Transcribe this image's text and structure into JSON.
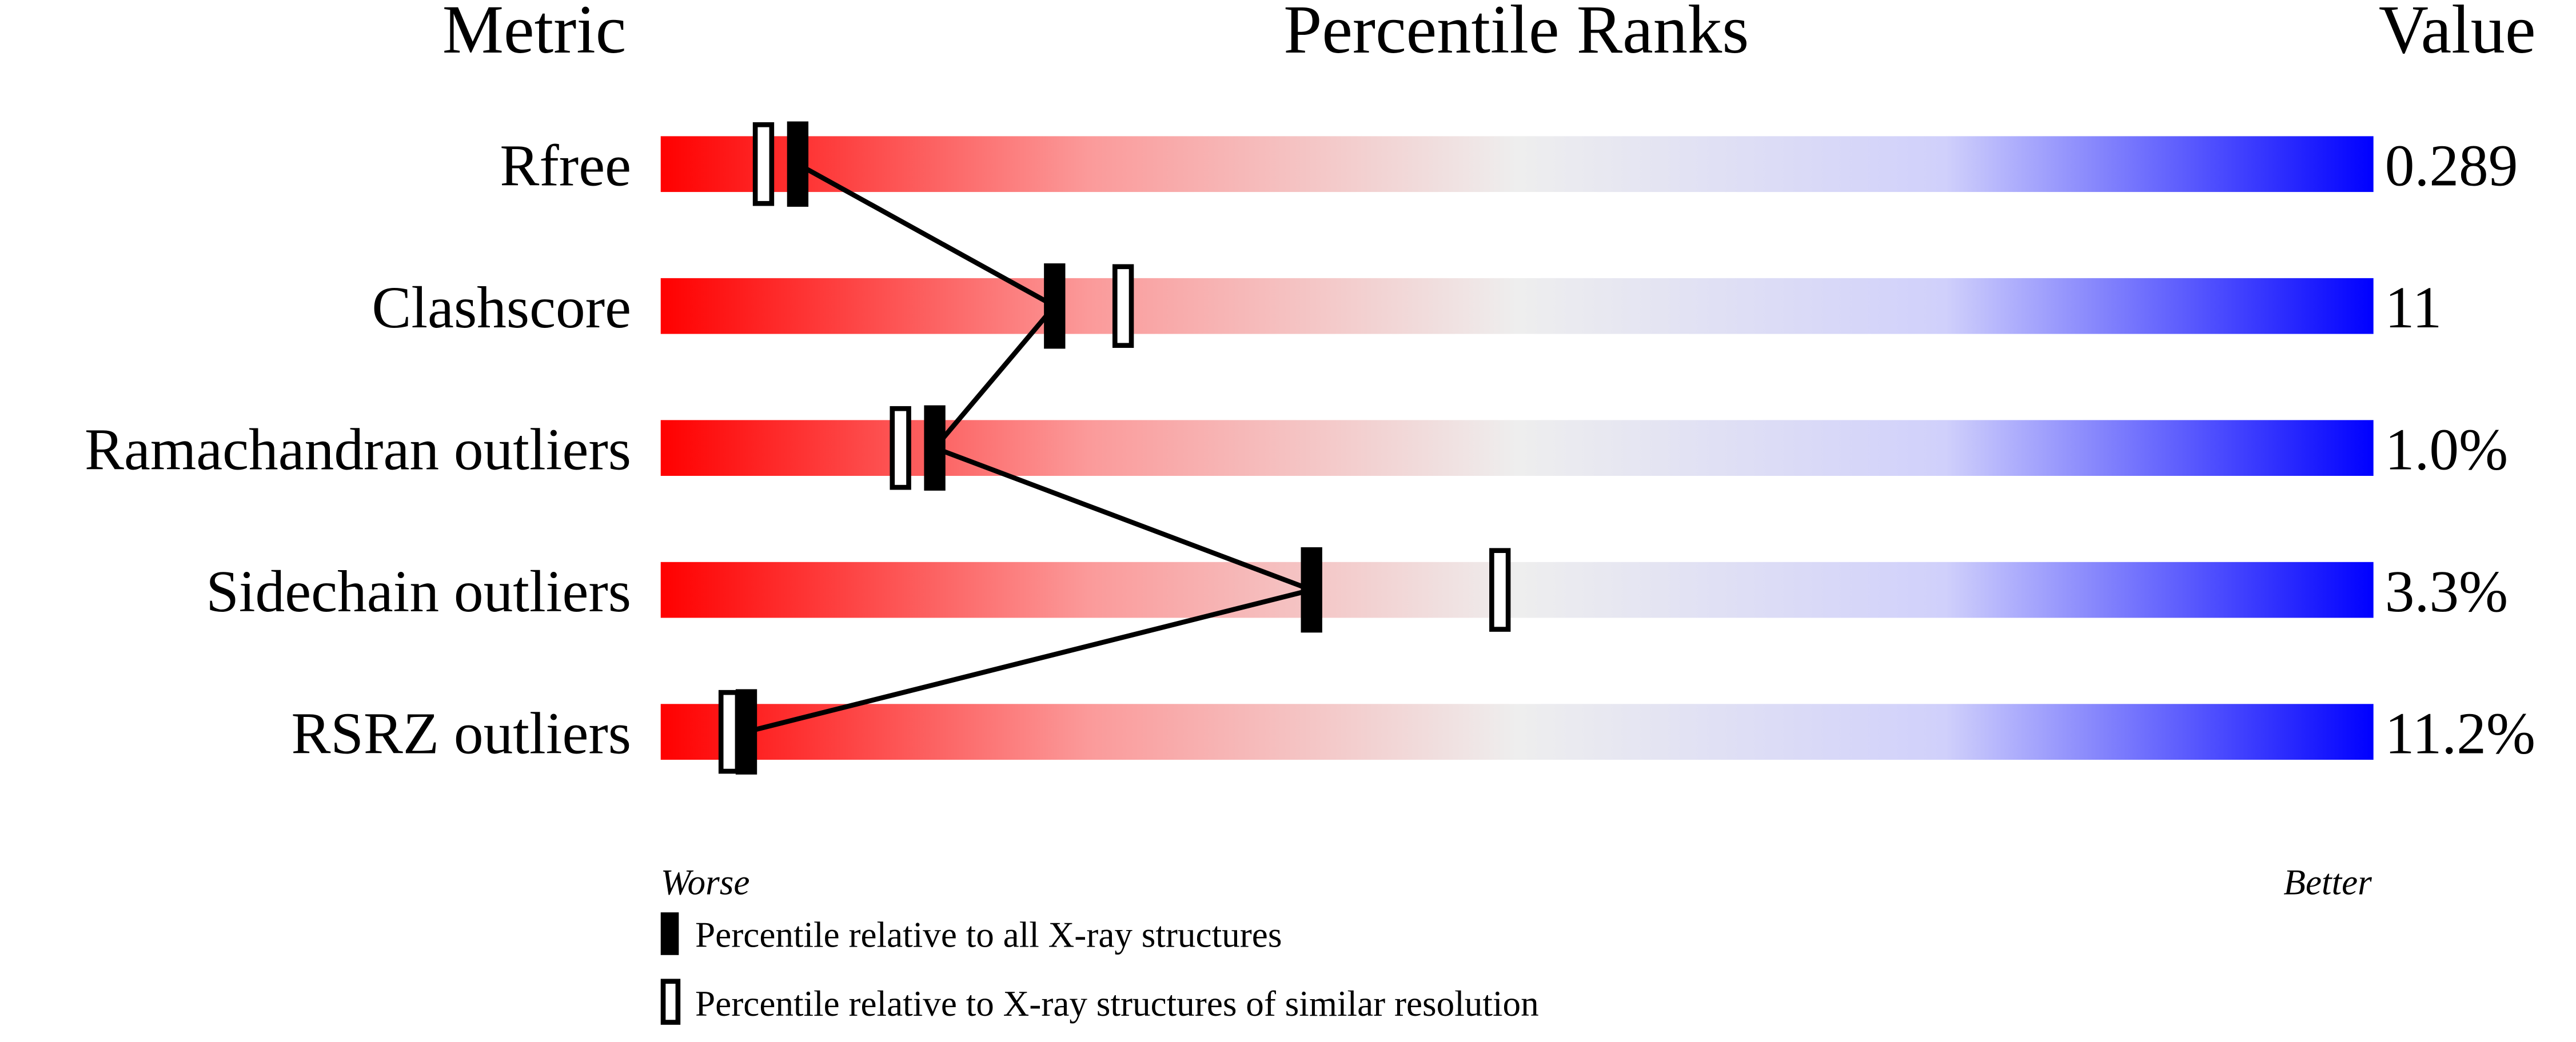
{
  "chart_data": {
    "type": "percentile-slider",
    "headers": {
      "metric": "Metric",
      "ranks": "Percentile Ranks",
      "value": "Value"
    },
    "axis": {
      "min_label": "Worse",
      "max_label": "Better",
      "range": [
        0,
        100
      ]
    },
    "gradient_colors": {
      "worse": "#ff0000",
      "middle": "#eeeeee",
      "better": "#0000ff"
    },
    "rows": [
      {
        "metric": "Rfree",
        "value": "0.289",
        "percentile_all": 8,
        "percentile_similar": 6
      },
      {
        "metric": "Clashscore",
        "value": "11",
        "percentile_all": 23,
        "percentile_similar": 27
      },
      {
        "metric": "Ramachandran outliers",
        "value": "1.0%",
        "percentile_all": 16,
        "percentile_similar": 14
      },
      {
        "metric": "Sidechain outliers",
        "value": "3.3%",
        "percentile_all": 38,
        "percentile_similar": 49
      },
      {
        "metric": "RSRZ outliers",
        "value": "11.2%",
        "percentile_all": 5,
        "percentile_similar": 4
      }
    ],
    "legend": [
      {
        "marker": "filled",
        "label": "Percentile relative to all X-ray structures"
      },
      {
        "marker": "open",
        "label": "Percentile relative to X-ray structures of similar resolution"
      }
    ]
  }
}
